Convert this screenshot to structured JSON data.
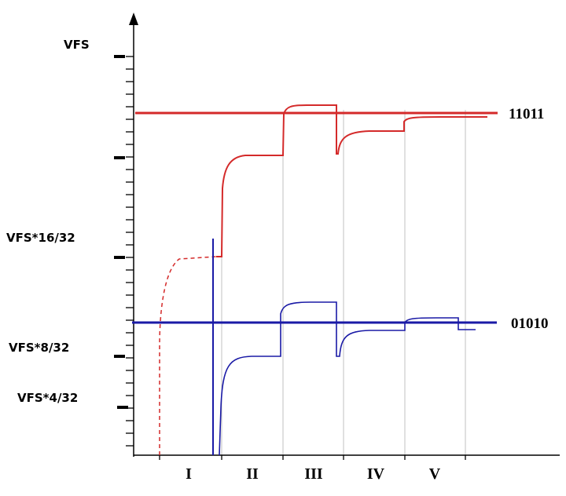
{
  "y_labels": {
    "vfs": "VFS",
    "vfs_16": "VFS*16/32",
    "vfs_8": "VFS*8/32",
    "vfs_4": "VFS*4/32"
  },
  "codes": {
    "upper": "11011",
    "lower": "01010"
  },
  "phases": [
    "I",
    "II",
    "III",
    "IV",
    "V"
  ],
  "colors": {
    "red": "#d42a2a",
    "blue": "#1a1aa6",
    "grid": "#c0c0c0",
    "axis": "#000000"
  }
}
